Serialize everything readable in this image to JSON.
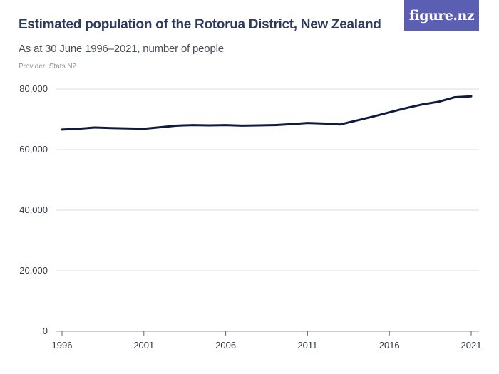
{
  "header": {
    "title": "Estimated population of the Rotorua District, New Zealand",
    "subtitle": "As at 30 June 1996–2021, number of people",
    "provider": "Provider: Stats NZ",
    "logo_text": "figure.nz"
  },
  "colors": {
    "line": "#0f1a3c",
    "grid": "#dcdcdc",
    "logo_bg": "#5b5fb3",
    "title": "#2e3a5c"
  },
  "chart_data": {
    "type": "line",
    "title": "Estimated population of the Rotorua District, New Zealand",
    "subtitle": "As at 30 June 1996–2021, number of people",
    "xlabel": "",
    "ylabel": "",
    "x": [
      1996,
      1997,
      1998,
      1999,
      2000,
      2001,
      2002,
      2003,
      2004,
      2005,
      2006,
      2007,
      2008,
      2009,
      2010,
      2011,
      2012,
      2013,
      2014,
      2015,
      2016,
      2017,
      2018,
      2019,
      2020,
      2021
    ],
    "series": [
      {
        "values": [
          66600,
          66900,
          67300,
          67100,
          67000,
          66900,
          67400,
          67900,
          68100,
          68000,
          68100,
          67900,
          68000,
          68100,
          68400,
          68800,
          68600,
          68300,
          69600,
          70900,
          72300,
          73700,
          74900,
          75800,
          77300,
          77600
        ]
      }
    ],
    "xlim": [
      1996,
      2021
    ],
    "ylim": [
      0,
      80000
    ],
    "x_ticks": [
      "1996",
      "2001",
      "2006",
      "2011",
      "2016",
      "2021"
    ],
    "y_ticks": [
      "0",
      "20,000",
      "40,000",
      "60,000",
      "80,000"
    ],
    "grid": true,
    "legend": "none"
  }
}
